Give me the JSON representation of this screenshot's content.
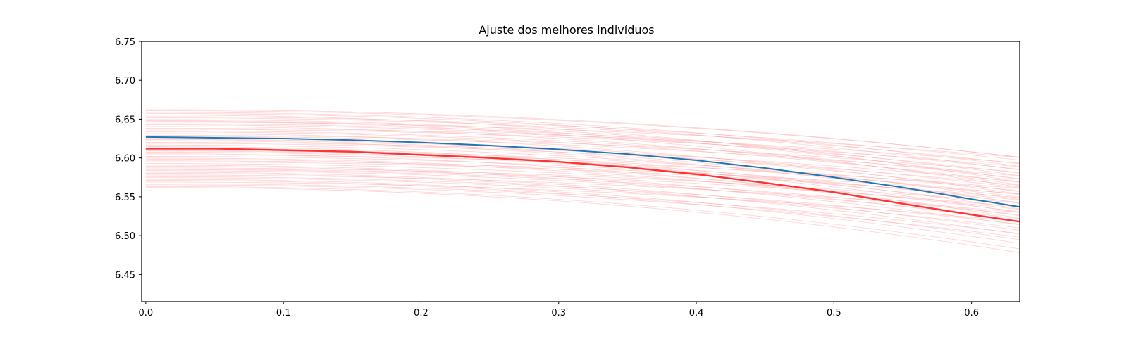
{
  "chart_data": {
    "type": "line",
    "title": "Ajuste dos melhores indivíduos",
    "xlabel": "",
    "ylabel": "",
    "xlim": [
      -0.003,
      0.635
    ],
    "ylim": [
      6.415,
      6.75
    ],
    "x_ticks": [
      "0.0",
      "0.1",
      "0.2",
      "0.3",
      "0.4",
      "0.5",
      "0.6"
    ],
    "y_ticks": [
      "6.45",
      "6.50",
      "6.55",
      "6.60",
      "6.65",
      "6.70",
      "6.75"
    ],
    "grid": false,
    "legend": "none",
    "x": [
      0.0,
      0.05,
      0.1,
      0.15,
      0.2,
      0.25,
      0.3,
      0.35,
      0.4,
      0.45,
      0.5,
      0.55,
      0.6,
      0.635
    ],
    "series": [
      {
        "role": "reference",
        "color": "#1f77b4",
        "values": [
          6.627,
          6.626,
          6.625,
          6.623,
          6.62,
          6.616,
          6.611,
          6.605,
          6.597,
          6.587,
          6.575,
          6.562,
          6.547,
          6.537
        ]
      },
      {
        "role": "best-fit",
        "color": "#ff3333",
        "values": [
          6.612,
          6.612,
          6.61,
          6.608,
          6.604,
          6.6,
          6.595,
          6.588,
          6.579,
          6.568,
          6.556,
          6.541,
          6.527,
          6.518
        ]
      }
    ],
    "individuals": {
      "color": "#ff9999",
      "count": 60,
      "start_range": [
        6.562,
        6.663
      ],
      "end_range": [
        6.478,
        6.601
      ]
    }
  }
}
